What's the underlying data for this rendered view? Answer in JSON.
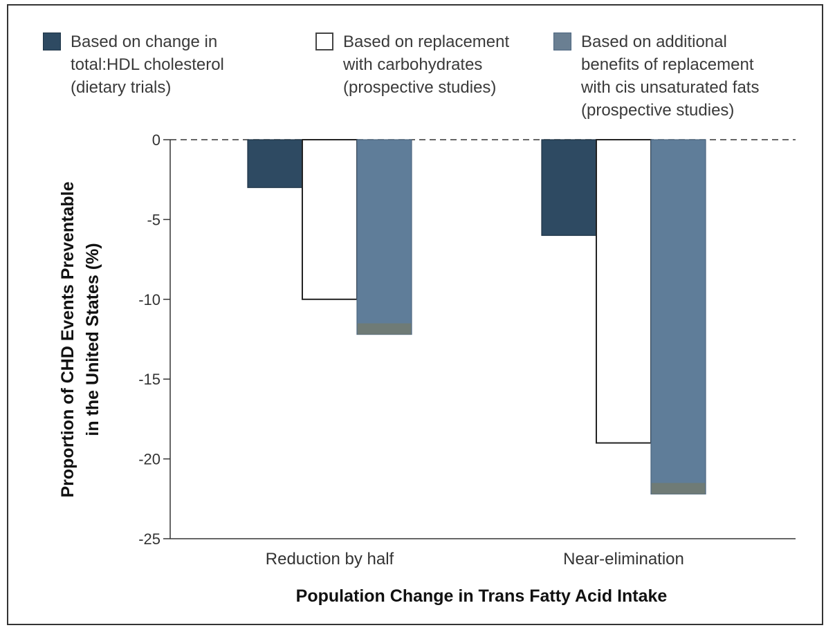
{
  "chart_data": {
    "type": "bar",
    "xlabel": "Population Change in Trans Fatty Acid Intake",
    "ylabel_line1": "Proportion of CHD Events Preventable",
    "ylabel_line2": "in the United States (%)",
    "ylim": [
      -25,
      0
    ],
    "yticks": [
      0,
      -5,
      -10,
      -15,
      -20,
      -25
    ],
    "ytick_labels": [
      "0",
      "-5",
      "-10",
      "-15",
      "-20",
      "-25"
    ],
    "grid": false,
    "zero_line": "dashed",
    "legend_placement": "top",
    "categories": [
      "Reduction by half",
      "Near-elimination"
    ],
    "series": [
      {
        "name": "Based on change in\ntotal:HDL cholesterol\n(dietary trials)",
        "values": [
          -3,
          -6
        ],
        "color": "#2e4a62",
        "border": "#1e3446"
      },
      {
        "name": "Based on replacement\nwith carbohydrates\n(prospective studies)",
        "values": [
          -10,
          -19
        ],
        "color": "#ffffff",
        "border": "#222222"
      },
      {
        "name": "Based on additional\nbenefits of replacement\nwith cis unsaturated fats\n(prospective studies)",
        "values": [
          -12.2,
          -22.2
        ],
        "color": "#5f7d99",
        "border": "#4c6680",
        "bottom_band_color": "#6f7b76"
      }
    ]
  }
}
